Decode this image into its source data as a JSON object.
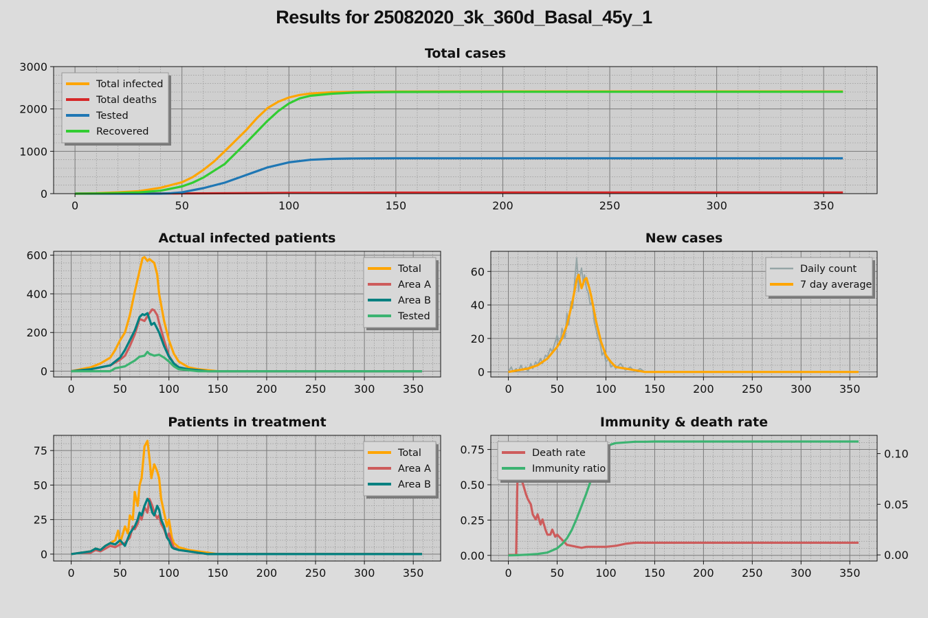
{
  "figure_title": "Results for 25082020_3k_360d_Basal_45y_1",
  "colors": {
    "background": "#dcdcdc",
    "plot_background": "#cfcfcf",
    "orange": "#ffa500",
    "red": "#d62728",
    "blue": "#1f77b4",
    "green": "#32cd32",
    "indianred": "#cd5c5c",
    "teal": "#008080",
    "mediumseagreen": "#3cb371",
    "gray": "#95a5a6"
  },
  "chart_data": [
    {
      "id": "total",
      "type": "line",
      "title": "Total cases",
      "xlim": [
        -10,
        375
      ],
      "ylim": [
        0,
        3000
      ],
      "xticks": [
        0,
        50,
        100,
        150,
        200,
        250,
        300,
        350
      ],
      "yticks": [
        0,
        1000,
        2000,
        3000
      ],
      "grid": true,
      "legend_position": "top-left",
      "series": [
        {
          "name": "Total infected",
          "color": "#ffa500",
          "x": [
            0,
            10,
            20,
            30,
            40,
            50,
            55,
            60,
            65,
            70,
            75,
            80,
            85,
            90,
            95,
            100,
            105,
            110,
            120,
            130,
            140,
            150,
            200,
            250,
            300,
            359
          ],
          "y": [
            0,
            10,
            30,
            60,
            140,
            270,
            390,
            560,
            760,
            1000,
            1250,
            1500,
            1780,
            2020,
            2170,
            2270,
            2330,
            2365,
            2395,
            2405,
            2410,
            2412,
            2415,
            2415,
            2415,
            2415
          ]
        },
        {
          "name": "Total deaths",
          "color": "#d62728",
          "x": [
            0,
            50,
            100,
            150,
            200,
            250,
            300,
            359
          ],
          "y": [
            0,
            5,
            18,
            25,
            26,
            27,
            27,
            27
          ]
        },
        {
          "name": "Tested",
          "color": "#1f77b4",
          "x": [
            0,
            40,
            45,
            50,
            60,
            70,
            80,
            90,
            100,
            110,
            120,
            130,
            140,
            150,
            200,
            250,
            300,
            359
          ],
          "y": [
            0,
            0,
            10,
            30,
            130,
            260,
            440,
            620,
            740,
            800,
            820,
            830,
            833,
            835,
            835,
            835,
            835,
            835
          ]
        },
        {
          "name": "Recovered",
          "color": "#32cd32",
          "x": [
            0,
            10,
            20,
            30,
            40,
            50,
            55,
            60,
            70,
            75,
            80,
            85,
            90,
            95,
            100,
            105,
            110,
            120,
            130,
            140,
            150,
            200,
            250,
            300,
            359
          ],
          "y": [
            0,
            5,
            15,
            30,
            70,
            170,
            260,
            380,
            700,
            950,
            1200,
            1460,
            1720,
            1950,
            2130,
            2250,
            2310,
            2360,
            2385,
            2395,
            2400,
            2405,
            2405,
            2405,
            2405
          ]
        }
      ]
    },
    {
      "id": "actual",
      "type": "line",
      "title": "Actual infected patients",
      "xlim": [
        -18,
        378
      ],
      "ylim": [
        -30,
        620
      ],
      "xticks": [
        0,
        50,
        100,
        150,
        200,
        250,
        300,
        350
      ],
      "yticks": [
        0,
        200,
        400,
        600
      ],
      "grid": true,
      "legend_position": "top-right",
      "series": [
        {
          "name": "Total",
          "color": "#ffa500",
          "x": [
            0,
            10,
            20,
            30,
            40,
            45,
            50,
            55,
            60,
            65,
            70,
            73,
            75,
            78,
            80,
            85,
            88,
            90,
            95,
            100,
            105,
            110,
            120,
            130,
            140,
            150,
            200,
            250,
            300,
            359
          ],
          "y": [
            0,
            10,
            20,
            40,
            70,
            110,
            160,
            200,
            290,
            410,
            520,
            585,
            590,
            570,
            580,
            560,
            500,
            400,
            260,
            160,
            90,
            50,
            20,
            10,
            5,
            0,
            0,
            0,
            0,
            0
          ]
        },
        {
          "name": "Area A",
          "color": "#cd5c5c",
          "x": [
            0,
            20,
            40,
            50,
            55,
            60,
            65,
            70,
            75,
            80,
            83,
            85,
            88,
            90,
            95,
            100,
            105,
            110,
            120,
            130,
            140,
            150,
            200,
            250,
            300,
            359
          ],
          "y": [
            0,
            10,
            30,
            60,
            80,
            130,
            190,
            270,
            260,
            300,
            320,
            315,
            290,
            250,
            160,
            80,
            40,
            20,
            10,
            5,
            0,
            0,
            0,
            0,
            0,
            0
          ]
        },
        {
          "name": "Area B",
          "color": "#008080",
          "x": [
            0,
            20,
            40,
            50,
            55,
            60,
            65,
            70,
            73,
            75,
            78,
            80,
            82,
            85,
            90,
            95,
            100,
            105,
            110,
            120,
            130,
            140,
            150,
            200,
            250,
            300,
            359
          ],
          "y": [
            0,
            10,
            30,
            70,
            110,
            160,
            210,
            280,
            295,
            290,
            300,
            270,
            240,
            250,
            200,
            130,
            75,
            40,
            20,
            10,
            5,
            0,
            0,
            0,
            0,
            0,
            0
          ]
        },
        {
          "name": "Tested",
          "color": "#3cb371",
          "x": [
            0,
            40,
            45,
            50,
            55,
            60,
            65,
            70,
            75,
            78,
            80,
            85,
            90,
            95,
            100,
            105,
            110,
            120,
            130,
            150,
            200,
            250,
            300,
            359
          ],
          "y": [
            0,
            0,
            15,
            20,
            25,
            40,
            55,
            75,
            80,
            100,
            90,
            80,
            85,
            70,
            50,
            25,
            10,
            5,
            0,
            0,
            0,
            0,
            0,
            0
          ]
        }
      ]
    },
    {
      "id": "newcases",
      "type": "line",
      "title": "New cases",
      "xlim": [
        -18,
        378
      ],
      "ylim": [
        -3,
        72
      ],
      "xticks": [
        0,
        50,
        100,
        150,
        200,
        250,
        300,
        350
      ],
      "yticks": [
        0,
        20,
        40,
        60
      ],
      "grid": true,
      "legend_position": "top-right",
      "series": [
        {
          "name": "Daily count",
          "color": "#95a5a6",
          "x": [
            0,
            3,
            5,
            8,
            10,
            13,
            15,
            18,
            20,
            23,
            25,
            28,
            30,
            33,
            35,
            38,
            40,
            43,
            45,
            48,
            50,
            53,
            55,
            58,
            60,
            62,
            64,
            66,
            68,
            70,
            71,
            72,
            73,
            75,
            77,
            78,
            80,
            82,
            84,
            86,
            88,
            90,
            92,
            94,
            96,
            98,
            100,
            103,
            105,
            108,
            110,
            115,
            120,
            125,
            130,
            135,
            140,
            150,
            200,
            250,
            300,
            359
          ],
          "y": [
            0,
            3,
            0,
            2,
            0,
            4,
            1,
            3,
            0,
            5,
            2,
            6,
            4,
            8,
            5,
            10,
            9,
            14,
            12,
            18,
            22,
            16,
            26,
            20,
            35,
            28,
            42,
            38,
            55,
            68,
            60,
            48,
            56,
            62,
            52,
            58,
            50,
            47,
            40,
            42,
            30,
            25,
            20,
            18,
            10,
            12,
            6,
            8,
            3,
            4,
            2,
            5,
            1,
            3,
            0,
            2,
            0,
            0,
            0,
            0,
            0,
            0
          ]
        },
        {
          "name": "7 day average",
          "color": "#ffa500",
          "x": [
            0,
            10,
            20,
            30,
            40,
            50,
            55,
            60,
            65,
            70,
            72,
            75,
            78,
            80,
            83,
            85,
            90,
            95,
            100,
            105,
            110,
            120,
            130,
            140,
            150,
            200,
            250,
            300,
            359
          ],
          "y": [
            0,
            1,
            2,
            4,
            8,
            15,
            20,
            28,
            40,
            55,
            58,
            50,
            55,
            56,
            50,
            45,
            30,
            18,
            10,
            6,
            3,
            2,
            1,
            0,
            0,
            0,
            0,
            0,
            0
          ]
        }
      ]
    },
    {
      "id": "treatment",
      "type": "line",
      "title": "Patients in treatment",
      "xlim": [
        -18,
        378
      ],
      "ylim": [
        -5,
        86
      ],
      "xticks": [
        0,
        50,
        100,
        150,
        200,
        250,
        300,
        350
      ],
      "yticks": [
        0,
        25,
        50,
        75
      ],
      "grid": true,
      "legend_position": "top-right",
      "series": [
        {
          "name": "Total",
          "color": "#ffa500",
          "x": [
            0,
            10,
            20,
            25,
            30,
            35,
            40,
            45,
            48,
            50,
            55,
            58,
            60,
            63,
            65,
            68,
            70,
            72,
            75,
            78,
            80,
            82,
            85,
            88,
            90,
            92,
            95,
            98,
            100,
            103,
            105,
            110,
            120,
            130,
            140,
            150,
            200,
            250,
            300,
            359
          ],
          "y": [
            0,
            1,
            2,
            4,
            3,
            6,
            8,
            10,
            17,
            8,
            20,
            15,
            28,
            25,
            45,
            35,
            50,
            55,
            78,
            82,
            70,
            55,
            65,
            60,
            55,
            40,
            30,
            20,
            25,
            12,
            8,
            5,
            3,
            2,
            1,
            0,
            0,
            0,
            0,
            0
          ]
        },
        {
          "name": "Area A",
          "color": "#cd5c5c",
          "x": [
            0,
            10,
            20,
            25,
            30,
            35,
            40,
            45,
            50,
            55,
            60,
            63,
            65,
            68,
            70,
            72,
            75,
            78,
            80,
            83,
            85,
            88,
            90,
            92,
            95,
            98,
            100,
            103,
            105,
            110,
            120,
            130,
            140,
            150,
            200,
            250,
            300,
            359
          ],
          "y": [
            0,
            1,
            1,
            3,
            2,
            4,
            6,
            5,
            7,
            8,
            12,
            20,
            18,
            22,
            28,
            25,
            34,
            30,
            40,
            35,
            30,
            26,
            28,
            22,
            18,
            12,
            15,
            8,
            5,
            3,
            2,
            1,
            0,
            0,
            0,
            0,
            0,
            0
          ]
        },
        {
          "name": "Area B",
          "color": "#008080",
          "x": [
            0,
            10,
            20,
            25,
            30,
            35,
            40,
            45,
            50,
            55,
            60,
            63,
            65,
            68,
            70,
            72,
            75,
            78,
            80,
            83,
            85,
            88,
            90,
            92,
            95,
            98,
            100,
            103,
            105,
            110,
            120,
            130,
            140,
            150,
            200,
            250,
            300,
            359
          ],
          "y": [
            0,
            1,
            2,
            4,
            3,
            6,
            8,
            7,
            10,
            6,
            15,
            18,
            20,
            25,
            30,
            28,
            35,
            40,
            38,
            30,
            28,
            35,
            32,
            25,
            20,
            12,
            10,
            5,
            4,
            3,
            2,
            1,
            0,
            0,
            0,
            0,
            0,
            0
          ]
        }
      ]
    },
    {
      "id": "immunity",
      "type": "line",
      "title": "Immunity & death rate",
      "xlim": [
        -18,
        378
      ],
      "ylim": [
        -0.04,
        0.85
      ],
      "ylim_right": [
        -0.006,
        0.118
      ],
      "xticks": [
        0,
        50,
        100,
        150,
        200,
        250,
        300,
        350
      ],
      "yticks": [
        0.0,
        0.25,
        0.5,
        0.75
      ],
      "yticks_right": [
        0.0,
        0.05,
        0.1
      ],
      "grid": true,
      "legend_position": "top-left",
      "series": [
        {
          "name": "Death rate",
          "axis": "right",
          "color": "#cd5c5c",
          "x": [
            0,
            8,
            9,
            10,
            11,
            13,
            15,
            18,
            20,
            23,
            25,
            28,
            30,
            33,
            35,
            38,
            40,
            43,
            45,
            48,
            50,
            55,
            60,
            65,
            70,
            75,
            80,
            90,
            100,
            110,
            120,
            130,
            140,
            150,
            200,
            250,
            300,
            359
          ],
          "y": [
            0,
            0,
            0.06,
            0.1,
            0.095,
            0.075,
            0.07,
            0.06,
            0.055,
            0.05,
            0.04,
            0.035,
            0.04,
            0.03,
            0.035,
            0.025,
            0.02,
            0.02,
            0.025,
            0.018,
            0.02,
            0.015,
            0.01,
            0.009,
            0.008,
            0.007,
            0.008,
            0.008,
            0.008,
            0.009,
            0.011,
            0.012,
            0.012,
            0.012,
            0.012,
            0.012,
            0.012,
            0.012
          ]
        },
        {
          "name": "Immunity ratio",
          "axis": "left",
          "color": "#3cb371",
          "x": [
            0,
            10,
            20,
            30,
            40,
            50,
            55,
            60,
            65,
            70,
            75,
            80,
            85,
            90,
            95,
            100,
            105,
            110,
            120,
            130,
            140,
            150,
            200,
            250,
            300,
            359
          ],
          "y": [
            0,
            0.002,
            0.005,
            0.01,
            0.02,
            0.05,
            0.08,
            0.12,
            0.18,
            0.26,
            0.35,
            0.44,
            0.54,
            0.64,
            0.71,
            0.76,
            0.785,
            0.795,
            0.8,
            0.805,
            0.805,
            0.806,
            0.806,
            0.806,
            0.806,
            0.806
          ]
        }
      ]
    }
  ]
}
